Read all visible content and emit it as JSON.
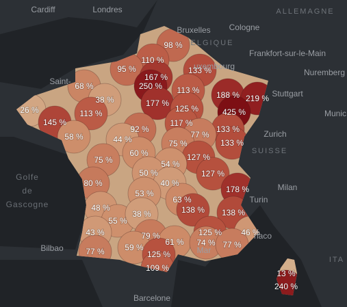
{
  "places": [
    "Cardiff",
    "Londres",
    "ALLEMAGNE",
    "Bruxelles",
    "Cologne",
    "ELGIQUE",
    "Frankfort-sur-le-Main",
    "uxembourg",
    "Nuremberg",
    "Stuttgart",
    "Munic",
    "Saint-",
    "Zurich",
    "SUISSE",
    "Golfe",
    "de",
    "Gascogne",
    "Milan",
    "Turin",
    "Bilbao",
    "naco",
    "Mar",
    "Barcelone",
    "ITA"
  ],
  "regions": [
    {
      "value": 98,
      "label": "98 %"
    },
    {
      "value": 110,
      "label": "110 %"
    },
    {
      "value": 95,
      "label": "95 %"
    },
    {
      "value": 167,
      "label": "167 %"
    },
    {
      "value": 133,
      "label": "133 %"
    },
    {
      "value": 68,
      "label": "68 %"
    },
    {
      "value": 250,
      "label": "250 %"
    },
    {
      "value": 113,
      "label": "113 %"
    },
    {
      "value": 188,
      "label": "188 %"
    },
    {
      "value": 219,
      "label": "219 %"
    },
    {
      "value": 38,
      "label": "38 %"
    },
    {
      "value": 177,
      "label": "177 %"
    },
    {
      "value": 125,
      "label": "125 %"
    },
    {
      "value": 26,
      "label": "26 %"
    },
    {
      "value": 113,
      "label": "113 %"
    },
    {
      "value": 425,
      "label": "425 %"
    },
    {
      "value": 145,
      "label": "145 %"
    },
    {
      "value": 117,
      "label": "117 %"
    },
    {
      "value": 92,
      "label": "92 %"
    },
    {
      "value": 133,
      "label": "133 %"
    },
    {
      "value": 58,
      "label": "58 %"
    },
    {
      "value": 77,
      "label": "77 %"
    },
    {
      "value": 44,
      "label": "44 %"
    },
    {
      "value": 75,
      "label": "75 %"
    },
    {
      "value": 133,
      "label": "133 %"
    },
    {
      "value": 60,
      "label": "60 %"
    },
    {
      "value": 127,
      "label": "127 %"
    },
    {
      "value": 75,
      "label": "75 %"
    },
    {
      "value": 54,
      "label": "54 %"
    },
    {
      "value": 50,
      "label": "50 %"
    },
    {
      "value": 127,
      "label": "127 %"
    },
    {
      "value": 80,
      "label": "80 %"
    },
    {
      "value": 40,
      "label": "40 %"
    },
    {
      "value": 178,
      "label": "178 %"
    },
    {
      "value": 53,
      "label": "53 %"
    },
    {
      "value": 63,
      "label": "63 %"
    },
    {
      "value": 48,
      "label": "48 %"
    },
    {
      "value": 138,
      "label": "138 %"
    },
    {
      "value": 138,
      "label": "138 %"
    },
    {
      "value": 55,
      "label": "55 %"
    },
    {
      "value": 38,
      "label": "38 %"
    },
    {
      "value": 43,
      "label": "43 %"
    },
    {
      "value": 125,
      "label": "125 %"
    },
    {
      "value": 46,
      "label": "46 %"
    },
    {
      "value": 79,
      "label": "79 %"
    },
    {
      "value": 61,
      "label": "61 %"
    },
    {
      "value": 74,
      "label": "74 %"
    },
    {
      "value": 77,
      "label": "77 %"
    },
    {
      "value": 77,
      "label": "77 %"
    },
    {
      "value": 59,
      "label": "59 %"
    },
    {
      "value": 125,
      "label": "125 %"
    },
    {
      "value": 109,
      "label": "109 %"
    },
    {
      "value": 13,
      "label": "13 %"
    },
    {
      "value": 240,
      "label": "240 %"
    }
  ]
}
